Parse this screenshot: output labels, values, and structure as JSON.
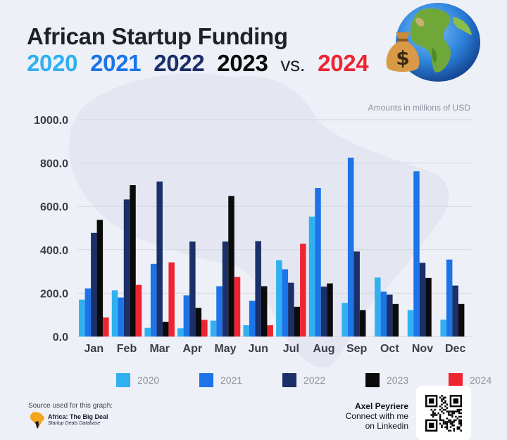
{
  "title": {
    "line1": "African Startup Funding",
    "years": [
      {
        "label": "2020",
        "color": "#31b0f0"
      },
      {
        "label": "2021",
        "color": "#1c74e8"
      },
      {
        "label": "2022",
        "color": "#1b2f68"
      },
      {
        "label": "2023",
        "color": "#0b0b0b"
      }
    ],
    "vs": "vs.",
    "final_year": {
      "label": "2024",
      "color": "#ee2530"
    }
  },
  "units_note": "Amounts in millions of USD",
  "chart_data": {
    "type": "bar",
    "categories": [
      "Jan",
      "Feb",
      "Mar",
      "Apr",
      "May",
      "Jun",
      "Jul",
      "Aug",
      "Sep",
      "Oct",
      "Nov",
      "Dec"
    ],
    "series": [
      {
        "name": "2020",
        "color": "#31b0f0",
        "values": [
          170,
          213,
          40,
          38,
          73,
          52,
          352,
          553,
          155,
          272,
          122,
          78
        ]
      },
      {
        "name": "2021",
        "color": "#1c74e8",
        "values": [
          222,
          180,
          335,
          190,
          232,
          165,
          310,
          685,
          825,
          207,
          762,
          355
        ]
      },
      {
        "name": "2022",
        "color": "#1b2f68",
        "values": [
          478,
          632,
          715,
          438,
          438,
          440,
          248,
          230,
          392,
          193,
          340,
          235
        ]
      },
      {
        "name": "2023",
        "color": "#0b0b0b",
        "values": [
          538,
          698,
          68,
          132,
          648,
          232,
          137,
          245,
          122,
          150,
          270,
          150
        ]
      },
      {
        "name": "2024",
        "color": "#ee2530",
        "values": [
          88,
          238,
          342,
          77,
          275,
          52,
          428,
          null,
          null,
          null,
          null,
          null
        ]
      }
    ],
    "ylim": [
      0,
      1000
    ],
    "yticks": [
      "0.0",
      "200.0",
      "400.0",
      "600.0",
      "800.0",
      "1000.0"
    ],
    "grid": true,
    "legend_position": "bottom"
  },
  "footer": {
    "source_label": "Source used for this graph:",
    "source_name": "Africa: The Big Deal",
    "source_sub": "Startup Deals Database",
    "author_name": "Axel Peyriere",
    "author_line2": "Connect with me",
    "author_line3": "on Linkedin"
  },
  "icons": {
    "globe": "globe-icon",
    "money_bag": "money-bag-icon",
    "qr": "qr-code-icon"
  }
}
